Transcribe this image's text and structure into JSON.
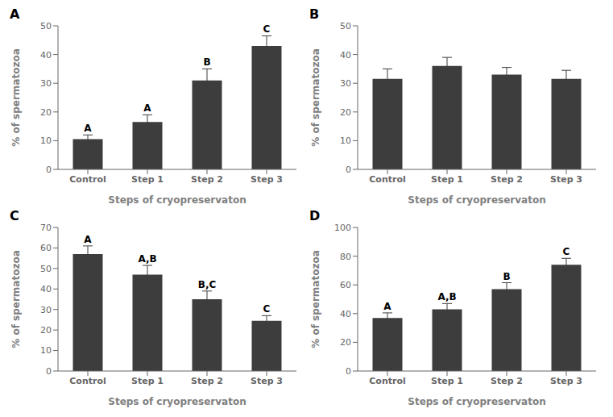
{
  "chart_data": [
    {
      "type": "bar",
      "title": "A",
      "categories": [
        "Control",
        "Step 1",
        "Step 2",
        "Step 3"
      ],
      "values": [
        10.5,
        16.5,
        31.0,
        43.0
      ],
      "errors": [
        1.5,
        2.5,
        4.0,
        3.5
      ],
      "annotations": [
        "A",
        "A",
        "B",
        "C"
      ],
      "ylabel": "% of spermatozoa",
      "xlabel": "Steps of cryopreservaton",
      "ylim": [
        0,
        50
      ],
      "yticks": [
        0,
        10,
        20,
        30,
        40,
        50
      ],
      "color": "#3d3d3d",
      "grid": false
    },
    {
      "type": "bar",
      "title": "B",
      "categories": [
        "Control",
        "Step 1",
        "Step 2",
        "Step 3"
      ],
      "values": [
        31.5,
        36.0,
        33.0,
        31.5
      ],
      "errors": [
        3.5,
        3.0,
        2.5,
        3.0
      ],
      "ylabel": "% of spermatozoa",
      "xlabel": "Steps of cryopreservaton",
      "ylim": [
        0,
        50
      ],
      "yticks": [
        0,
        10,
        20,
        30,
        40,
        50
      ],
      "color": "#3d3d3d",
      "grid": false
    },
    {
      "type": "bar",
      "title": "C",
      "categories": [
        "Control",
        "Step 1",
        "Step 2",
        "Step 3"
      ],
      "values": [
        57.0,
        47.0,
        35.0,
        24.5
      ],
      "errors": [
        4.0,
        4.5,
        4.0,
        2.5
      ],
      "annotations": [
        "A",
        "A,B",
        "B,C",
        "C"
      ],
      "ylabel": "% of spermatozoa",
      "xlabel": "Steps of cryopreservaton",
      "ylim": [
        0,
        70
      ],
      "yticks": [
        0,
        10,
        20,
        30,
        40,
        50,
        60,
        70
      ],
      "color": "#3d3d3d",
      "grid": false
    },
    {
      "type": "bar",
      "title": "D",
      "categories": [
        "Control",
        "Step 1",
        "Step 2",
        "Step 3"
      ],
      "values": [
        37.0,
        43.0,
        57.0,
        74.0
      ],
      "errors": [
        3.5,
        4.0,
        4.5,
        4.5
      ],
      "annotations": [
        "A",
        "A,B",
        "B",
        "C"
      ],
      "ylabel": "% of spermatozoa",
      "xlabel": "Steps of cryopreservaton",
      "ylim": [
        0,
        100
      ],
      "yticks": [
        0,
        20,
        40,
        60,
        80,
        100
      ],
      "color": "#3d3d3d",
      "grid": false
    }
  ]
}
